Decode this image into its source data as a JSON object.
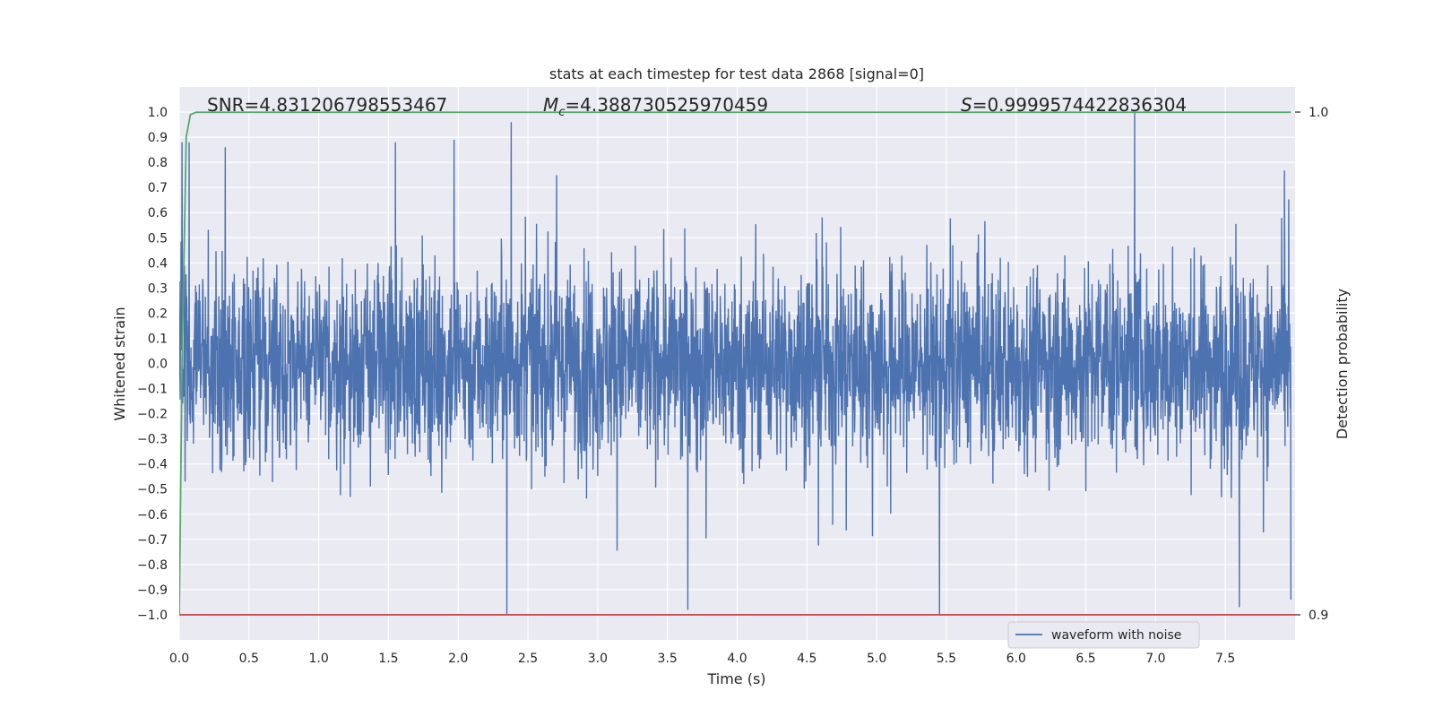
{
  "chart_data": {
    "type": "line",
    "title": "stats at each timestep for test data 2868 [signal=0]",
    "xlabel": "Time (s)",
    "ylabel": "Whitened strain",
    "y2label": "Detection probability",
    "xlim": [
      0.0,
      8.0
    ],
    "ylim": [
      -1.1,
      1.1
    ],
    "y2lim": [
      0.895,
      1.005
    ],
    "x_ticks": [
      0.0,
      0.5,
      1.0,
      1.5,
      2.0,
      2.5,
      3.0,
      3.5,
      4.0,
      4.5,
      5.0,
      5.5,
      6.0,
      6.5,
      7.0,
      7.5
    ],
    "x_tick_labels": [
      "0.0",
      "0.5",
      "1.0",
      "1.5",
      "2.0",
      "2.5",
      "3.0",
      "3.5",
      "4.0",
      "4.5",
      "5.0",
      "5.5",
      "6.0",
      "6.5",
      "7.0",
      "7.5"
    ],
    "y_ticks": [
      1.0,
      0.9,
      0.8,
      0.7,
      0.6,
      0.5,
      0.4,
      0.3,
      0.2,
      0.1,
      0.0,
      -0.1,
      -0.2,
      -0.3,
      -0.4,
      -0.5,
      -0.6,
      -0.7,
      -0.8,
      -0.9,
      -1.0
    ],
    "y_tick_labels": [
      "1.0",
      "0.9",
      "0.8",
      "0.7",
      "0.6",
      "0.5",
      "0.4",
      "0.3",
      "0.2",
      "0.1",
      "0.0",
      "−0.1",
      "−0.2",
      "−0.3",
      "−0.4",
      "−0.5",
      "−0.6",
      "−0.7",
      "−0.8",
      "−0.9",
      "−1.0"
    ],
    "y2_ticks": [
      1.0,
      0.9
    ],
    "y2_tick_labels": [
      "1.0",
      "0.9"
    ],
    "grid": true,
    "legend": {
      "position": "lower-right",
      "entries": [
        "waveform with noise"
      ]
    },
    "annotations": {
      "snr": "SNR=4.831206798553467",
      "mc_prefix": "M",
      "mc_sub": "c",
      "mc_value": "=4.388730525970459",
      "s_prefix": "S",
      "s_value": "=0.9999574422836304"
    },
    "series": [
      {
        "name": "waveform with noise",
        "axis": "left",
        "color": "#4c72b0",
        "note_values": "dense whitened-noise trace; envelope approx ±0.35 typical, peaks up to 1.0 and down to -1.0",
        "peak_x": [
          0.02,
          0.07,
          0.33,
          1.55,
          1.97,
          2.38,
          2.35,
          5.45,
          6.85,
          7.6,
          7.97
        ],
        "peak_y": [
          0.88,
          0.88,
          0.86,
          0.88,
          0.89,
          0.96,
          -1.0,
          -1.0,
          1.0,
          -0.97,
          -0.94
        ]
      },
      {
        "name": "",
        "axis": "right",
        "color": "#55a868",
        "x": [
          0.0,
          0.02,
          0.05,
          0.08,
          0.12,
          0.2,
          1.0,
          4.0,
          7.97
        ],
        "y": [
          0.9,
          0.95,
          0.995,
          0.9995,
          0.99996,
          0.99996,
          0.99996,
          0.99996,
          0.99996
        ]
      },
      {
        "name": "",
        "axis": "right",
        "color": "#c44e52",
        "x": [
          0.0,
          8.0
        ],
        "y": [
          0.9,
          0.9
        ]
      }
    ]
  }
}
